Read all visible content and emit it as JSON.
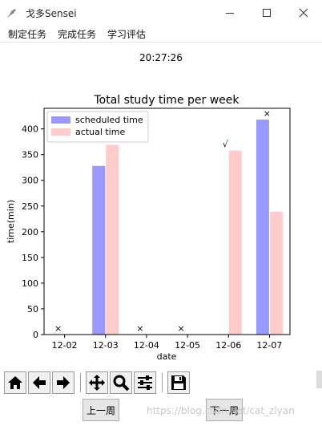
{
  "window": {
    "title": "戈多Sensei"
  },
  "menu": {
    "items": [
      "制定任务",
      "完成任务",
      "学习评估"
    ]
  },
  "clock": "20:27:26",
  "chart_data": {
    "type": "bar",
    "title": "Total study time per week",
    "xlabel": "date",
    "ylabel": "time(min)",
    "categories": [
      "12-02",
      "12-03",
      "12-04",
      "12-05",
      "12-06",
      "12-07"
    ],
    "ylim": [
      0,
      440
    ],
    "yticks": [
      0,
      50,
      100,
      150,
      200,
      250,
      300,
      350,
      400
    ],
    "series": [
      {
        "name": "scheduled time",
        "color": "#9999ff",
        "values": [
          0,
          328,
          0,
          0,
          0,
          418
        ]
      },
      {
        "name": "actual time",
        "color": "#ffcccc",
        "values": [
          0,
          369,
          0,
          0,
          358,
          239
        ]
      }
    ],
    "annotations": [
      "×",
      "",
      "×",
      "×",
      "√",
      "×"
    ],
    "legend_position": "upper-left",
    "grid": false
  },
  "toolbar": {
    "icons": [
      "home-icon",
      "back-arrow-icon",
      "forward-arrow-icon",
      "pan-icon",
      "zoom-icon",
      "configure-subplots-icon",
      "save-icon"
    ]
  },
  "nav": {
    "prev_label": "上一周",
    "next_label": "下一周"
  },
  "watermark": "https://blog.csdn.net/cat_zlyan"
}
